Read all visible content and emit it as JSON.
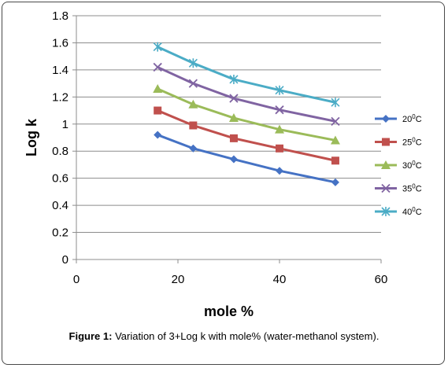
{
  "chart_data": {
    "type": "line",
    "xlabel": "mole %",
    "ylabel": "Log k",
    "xlim": [
      0,
      60
    ],
    "ylim": [
      0,
      1.8
    ],
    "xticks": [
      0,
      20,
      40,
      60
    ],
    "yticks": [
      0,
      0.2,
      0.4,
      0.6,
      0.8,
      1,
      1.2,
      1.4,
      1.6,
      1.8
    ],
    "grid": "horizontal",
    "legend_position": "right",
    "series": [
      {
        "name_base": "20",
        "name_sup": "0",
        "name_unit": "C",
        "color": "#4572c4",
        "marker": "diamond",
        "points": [
          [
            16,
            0.92
          ],
          [
            23,
            0.82
          ],
          [
            31,
            0.74
          ],
          [
            40,
            0.655
          ],
          [
            51,
            0.57
          ]
        ]
      },
      {
        "name_base": "25",
        "name_sup": "0",
        "name_unit": "C",
        "color": "#c0504d",
        "marker": "square",
        "points": [
          [
            16,
            1.1
          ],
          [
            23,
            0.99
          ],
          [
            31,
            0.895
          ],
          [
            40,
            0.82
          ],
          [
            51,
            0.73
          ]
        ]
      },
      {
        "name_base": "30",
        "name_sup": "0",
        "name_unit": "C",
        "color": "#9bbb59",
        "marker": "triangle",
        "points": [
          [
            16,
            1.26
          ],
          [
            23,
            1.145
          ],
          [
            31,
            1.045
          ],
          [
            40,
            0.96
          ],
          [
            51,
            0.88
          ]
        ]
      },
      {
        "name_base": "35",
        "name_sup": "0",
        "name_unit": "C",
        "color": "#8064a2",
        "marker": "x",
        "points": [
          [
            16,
            1.42
          ],
          [
            23,
            1.3
          ],
          [
            31,
            1.19
          ],
          [
            40,
            1.105
          ],
          [
            51,
            1.02
          ]
        ]
      },
      {
        "name_base": "40",
        "name_sup": "0",
        "name_unit": "C",
        "color": "#4bacc6",
        "marker": "star",
        "points": [
          [
            16,
            1.57
          ],
          [
            23,
            1.45
          ],
          [
            31,
            1.33
          ],
          [
            40,
            1.25
          ],
          [
            51,
            1.16
          ]
        ]
      }
    ]
  },
  "caption": {
    "label": "Figure 1:",
    "text": " Variation of 3+Log k with mole% (water-methanol system)."
  }
}
